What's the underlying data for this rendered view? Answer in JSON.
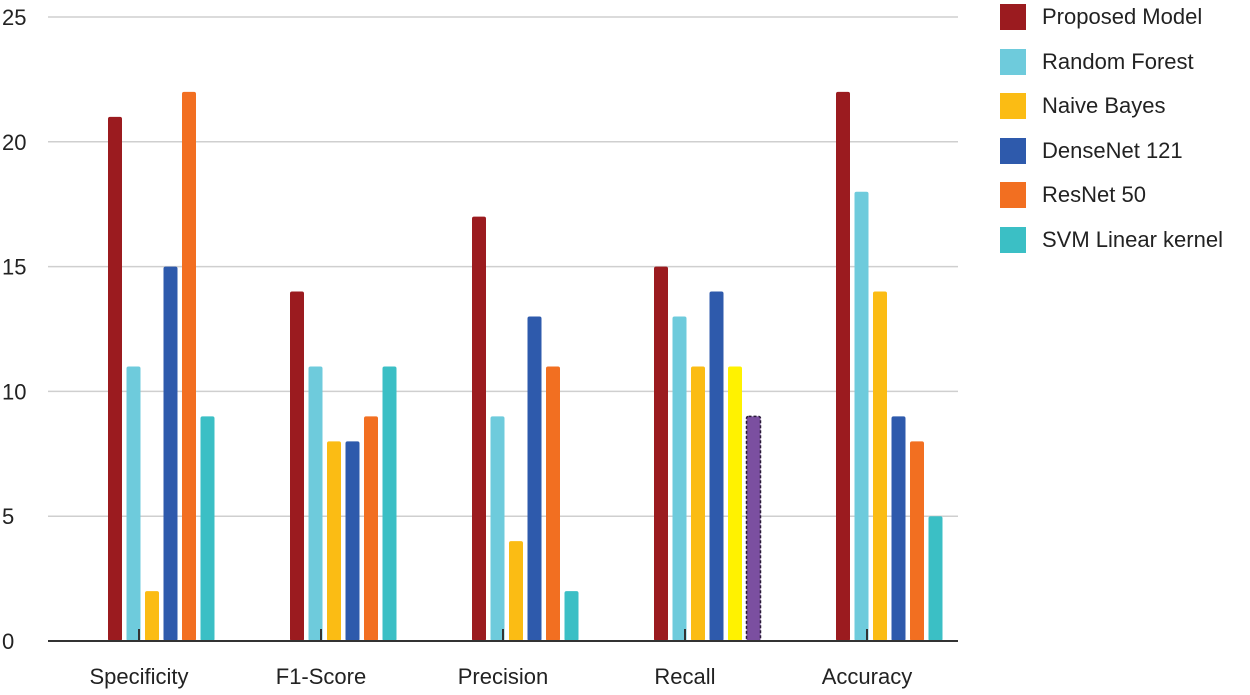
{
  "chart_data": {
    "type": "bar",
    "title": "",
    "xlabel": "",
    "ylabel": "",
    "categories": [
      "Specificity",
      "F1-Score",
      "Precision",
      "Recall",
      "Accuracy"
    ],
    "ylim": [
      0,
      25
    ],
    "yticks": [
      0,
      5,
      10,
      15,
      20,
      25
    ],
    "grid": true,
    "legend_position": "right",
    "series": [
      {
        "name": "Proposed Model",
        "color": "#9B1B1F",
        "values": [
          21,
          14,
          17,
          15,
          22
        ]
      },
      {
        "name": "Random Forest",
        "color": "#6ECBDC",
        "values": [
          11,
          11,
          9,
          13,
          18
        ]
      },
      {
        "name": "Naive Bayes",
        "color": "#FBBC14",
        "values": [
          2,
          8,
          4,
          11,
          14
        ]
      },
      {
        "name": "DenseNet 121",
        "color": "#2E5AAC",
        "values": [
          15,
          8,
          13,
          14,
          9
        ]
      },
      {
        "name": "ResNet 50",
        "color": "#F26F21",
        "values": [
          22,
          9,
          11,
          null,
          8
        ]
      },
      {
        "name": "SVM Linear kernel",
        "color": "#3BBFC5",
        "values": [
          9,
          11,
          2,
          null,
          5
        ]
      }
    ],
    "extra_bars": [
      {
        "category": "Recall",
        "value": 11,
        "color": "#FFF200"
      },
      {
        "category": "Recall",
        "value": 9,
        "color": "#7B4FA0"
      }
    ]
  }
}
